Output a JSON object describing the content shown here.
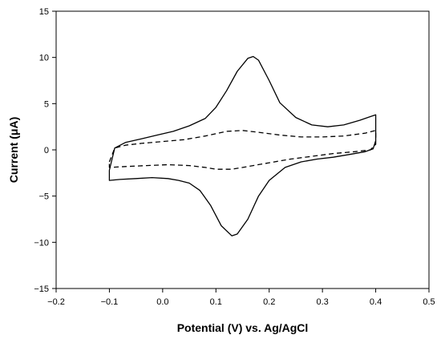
{
  "chart_data": {
    "type": "line",
    "title": "",
    "xlabel": "Potential (V) vs. Ag/AgCl",
    "ylabel": "Current (μA)",
    "xlim": [
      -0.2,
      0.5
    ],
    "ylim": [
      -15,
      15
    ],
    "xticks": [
      -0.2,
      -0.1,
      0.0,
      0.1,
      0.2,
      0.3,
      0.4,
      0.5
    ],
    "xtick_labels": [
      "−0.2",
      "−0.1",
      "0.0",
      "0.1",
      "0.2",
      "0.3",
      "0.4",
      "0.5"
    ],
    "yticks": [
      -15,
      -10,
      -5,
      0,
      5,
      10,
      15
    ],
    "ytick_labels": [
      "−15",
      "−10",
      "−5",
      "0",
      "5",
      "10",
      "15"
    ],
    "grid": false,
    "legend": "none",
    "series": [
      {
        "style": "solid",
        "color": "#000000",
        "x": [
          -0.1,
          -0.09,
          -0.07,
          -0.04,
          -0.01,
          0.02,
          0.05,
          0.08,
          0.1,
          0.12,
          0.14,
          0.16,
          0.17,
          0.18,
          0.2,
          0.22,
          0.25,
          0.28,
          0.31,
          0.34,
          0.37,
          0.39,
          0.4,
          0.4,
          0.395,
          0.38,
          0.35,
          0.32,
          0.29,
          0.26,
          0.23,
          0.2,
          0.18,
          0.16,
          0.14,
          0.13,
          0.11,
          0.09,
          0.07,
          0.05,
          0.03,
          0.01,
          -0.02,
          -0.05,
          -0.08,
          -0.1,
          -0.1
        ],
        "y": [
          -2.2,
          0.2,
          0.8,
          1.2,
          1.6,
          2.0,
          2.6,
          3.4,
          4.6,
          6.4,
          8.5,
          9.9,
          10.1,
          9.7,
          7.5,
          5.1,
          3.5,
          2.7,
          2.5,
          2.7,
          3.2,
          3.6,
          3.8,
          1.0,
          0.1,
          -0.2,
          -0.5,
          -0.8,
          -1.0,
          -1.3,
          -1.9,
          -3.3,
          -5.0,
          -7.5,
          -9.1,
          -9.3,
          -8.2,
          -6.0,
          -4.4,
          -3.6,
          -3.3,
          -3.1,
          -3.0,
          -3.1,
          -3.2,
          -3.3,
          -2.2
        ]
      },
      {
        "style": "dashed",
        "color": "#000000",
        "x": [
          -0.1,
          -0.09,
          -0.07,
          -0.04,
          0.0,
          0.04,
          0.08,
          0.12,
          0.15,
          0.18,
          0.22,
          0.26,
          0.3,
          0.34,
          0.38,
          0.4,
          0.4,
          0.39,
          0.36,
          0.32,
          0.28,
          0.24,
          0.2,
          0.16,
          0.13,
          0.1,
          0.08,
          0.05,
          0.01,
          -0.03,
          -0.07,
          -0.1,
          -0.1
        ],
        "y": [
          -1.3,
          0.2,
          0.5,
          0.7,
          0.9,
          1.1,
          1.5,
          2.0,
          2.1,
          1.9,
          1.6,
          1.4,
          1.4,
          1.5,
          1.8,
          2.1,
          0.6,
          0.0,
          -0.2,
          -0.4,
          -0.7,
          -1.0,
          -1.4,
          -1.8,
          -2.1,
          -2.1,
          -1.9,
          -1.7,
          -1.6,
          -1.7,
          -1.8,
          -1.9,
          -1.3
        ]
      }
    ]
  }
}
